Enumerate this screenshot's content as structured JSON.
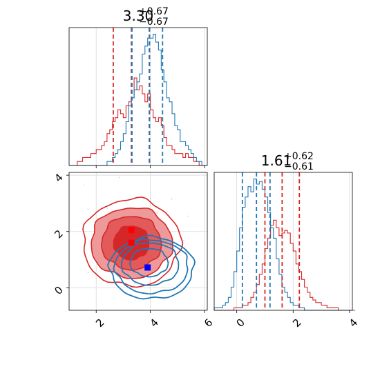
{
  "chart_data": {
    "type": "corner",
    "grid": true,
    "colors": {
      "red": "#d62728",
      "blue": "#1f77b4",
      "red_light": "#ef9a9a",
      "red_mid": "#e35a5a",
      "grid": "#d9d9d9"
    },
    "param1": {
      "title": {
        "base": "3.30",
        "sup": "+0.67",
        "sub": "−0.67"
      },
      "range": [
        1.0,
        6.1
      ],
      "ticks": [
        "2",
        "4",
        "6"
      ],
      "tick_values": [
        2,
        4,
        6
      ],
      "red_quantiles": [
        2.63,
        3.3,
        3.96
      ],
      "blue_quantiles": [
        3.32,
        3.97,
        4.45
      ],
      "bin_edges_start": 1.0,
      "bin_width": 0.1,
      "red_hist": [
        0,
        0,
        0,
        1,
        1,
        2,
        2,
        2,
        3,
        3,
        4,
        4,
        5,
        6,
        8,
        9,
        11,
        12,
        14,
        13,
        12,
        15,
        16,
        17,
        22,
        19,
        20,
        18,
        16,
        18,
        14,
        12,
        11,
        12,
        10,
        7,
        5,
        5,
        4,
        3,
        3,
        3,
        2,
        3,
        2,
        2,
        1,
        1,
        0,
        0,
        0
      ],
      "blue_hist": [
        0,
        0,
        0,
        0,
        0,
        0,
        0,
        0,
        0,
        0,
        0,
        0,
        0,
        0,
        1,
        1,
        2,
        3,
        4,
        6,
        8,
        11,
        15,
        17,
        19,
        21,
        23,
        28,
        30,
        32,
        32,
        33,
        31,
        29,
        24,
        21,
        17,
        16,
        13,
        10,
        9,
        6,
        6,
        5,
        4,
        3,
        2,
        1,
        1,
        0,
        0
      ]
    },
    "param2": {
      "title": {
        "base": "1.61",
        "sup": "+0.62",
        "sub": "−0.61"
      },
      "range": [
        -0.8,
        4.1
      ],
      "ticks": [
        "0",
        "2",
        "4"
      ],
      "tick_values": [
        0,
        2,
        4
      ],
      "red_quantiles": [
        1.0,
        1.61,
        2.22
      ],
      "blue_quantiles": [
        0.2,
        0.7,
        1.18
      ],
      "bin_edges_start": -0.8,
      "bin_width": 0.1,
      "red_hist": [
        0,
        0,
        0,
        0,
        0,
        0,
        0,
        1,
        1,
        1,
        2,
        2,
        3,
        5,
        7,
        10,
        14,
        18,
        24,
        28,
        33,
        35,
        32,
        29,
        30,
        31,
        30,
        26,
        23,
        18,
        15,
        12,
        9,
        7,
        5,
        4,
        3,
        3,
        2,
        2,
        1,
        1,
        1,
        1,
        0,
        0,
        0,
        0,
        0,
        0
      ],
      "blue_hist": [
        1,
        1,
        1,
        2,
        3,
        5,
        9,
        15,
        23,
        32,
        40,
        44,
        48,
        46,
        51,
        49,
        50,
        47,
        44,
        38,
        32,
        28,
        20,
        14,
        9,
        7,
        5,
        3,
        2,
        2,
        1,
        1,
        0,
        0,
        0,
        0,
        0,
        0,
        0,
        0,
        0,
        0,
        0,
        0,
        0,
        0,
        0,
        0,
        0,
        0
      ]
    },
    "scatter2d": {
      "x_range": [
        1.0,
        6.1
      ],
      "y_range": [
        -0.8,
        4.1
      ],
      "x_ticks": [
        "2",
        "4",
        "6"
      ],
      "y_ticks": [
        "0",
        "2",
        "4"
      ],
      "markers": [
        {
          "x": 3.3,
          "y": 2.05,
          "color": "red"
        },
        {
          "x": 3.3,
          "y": 1.6,
          "color": "red"
        },
        {
          "x": 3.9,
          "y": 0.72,
          "color": "blue"
        }
      ],
      "red_contours": [
        {
          "cx": 3.3,
          "cy": 1.6,
          "rx": 0.65,
          "ry": 0.6,
          "fill": "red"
        },
        {
          "cx": 3.3,
          "cy": 1.6,
          "rx": 1.1,
          "ry": 0.95,
          "fill": "red_mid"
        },
        {
          "cx": 3.3,
          "cy": 1.6,
          "rx": 1.5,
          "ry": 1.25,
          "fill": "red_light"
        },
        {
          "cx": 3.3,
          "cy": 1.6,
          "rx": 1.8,
          "ry": 1.55,
          "fill": "none"
        }
      ],
      "blue_contours": [
        {
          "cx": 3.95,
          "cy": 0.9,
          "rx": 0.7,
          "ry": 0.5
        },
        {
          "cx": 4.0,
          "cy": 0.85,
          "rx": 1.05,
          "ry": 0.75
        },
        {
          "cx": 4.05,
          "cy": 0.75,
          "rx": 1.35,
          "ry": 0.95
        },
        {
          "cx": 4.05,
          "cy": 0.7,
          "rx": 1.55,
          "ry": 1.1
        }
      ]
    }
  }
}
